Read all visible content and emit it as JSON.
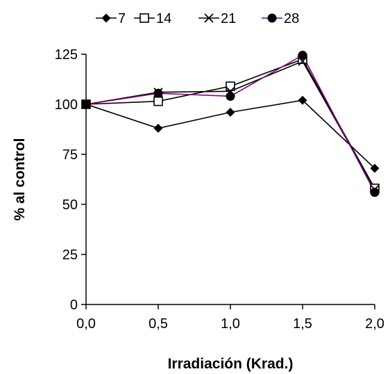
{
  "chart_data": {
    "type": "line",
    "title": "",
    "xlabel": "Irradiación (Krad.)",
    "ylabel": "% al control",
    "x": [
      0.0,
      0.5,
      1.0,
      1.5,
      2.0
    ],
    "x_tick_labels": [
      "0,0",
      "0,5",
      "1,0",
      "1,5",
      "2,0"
    ],
    "y_ticks": [
      0,
      25,
      50,
      75,
      100,
      125
    ],
    "y_tick_labels": [
      "0",
      "25",
      "50",
      "75",
      "100",
      "125"
    ],
    "xlim": [
      0,
      2
    ],
    "ylim": [
      0,
      125
    ],
    "grid": false,
    "legend_position": "top",
    "series": [
      {
        "name": "7",
        "marker": "diamond",
        "color": "#000000",
        "values": [
          100,
          88,
          96,
          102,
          68
        ]
      },
      {
        "name": "14",
        "marker": "square-open",
        "color": "#000000",
        "values": [
          100,
          101.5,
          109,
          122.5,
          58
        ]
      },
      {
        "name": "21",
        "marker": "x",
        "color": "#000000",
        "values": [
          100,
          106,
          106.5,
          121.5,
          57.5
        ]
      },
      {
        "name": "28",
        "marker": "circle",
        "color": "#800080",
        "values": [
          100,
          105.5,
          104,
          124.5,
          56
        ]
      }
    ]
  }
}
